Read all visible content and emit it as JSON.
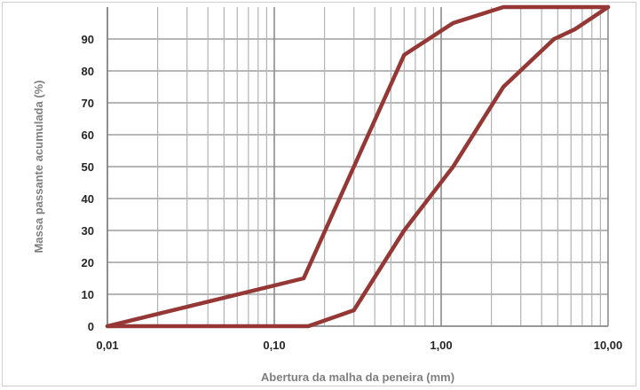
{
  "chart_data": {
    "type": "line",
    "title": "",
    "xlabel": "Abertura da malha da peneira (mm)",
    "ylabel": "Massa passante acumulada (%)",
    "x_scale": "log",
    "xlim": [
      0.01,
      10
    ],
    "ylim": [
      0,
      100
    ],
    "x_tick_labels": [
      "0,01",
      "0,10",
      "1,00",
      "10,00"
    ],
    "y_tick_labels": [
      "0",
      "10",
      "20",
      "30",
      "40",
      "50",
      "60",
      "70",
      "80",
      "90"
    ],
    "grid": true,
    "legend": "none",
    "series": [
      {
        "color": "#953735",
        "x": [
          0.01,
          0.15,
          0.3,
          0.6,
          1.18,
          2.36,
          10
        ],
        "y": [
          0,
          15,
          50,
          85,
          95,
          100,
          100
        ]
      },
      {
        "color": "#953735",
        "x": [
          0.01,
          0.16,
          0.3,
          0.6,
          1.18,
          2.36,
          4.75,
          6.3,
          10
        ],
        "y": [
          0,
          0,
          5,
          30,
          50,
          75,
          90,
          93,
          100
        ]
      }
    ]
  }
}
